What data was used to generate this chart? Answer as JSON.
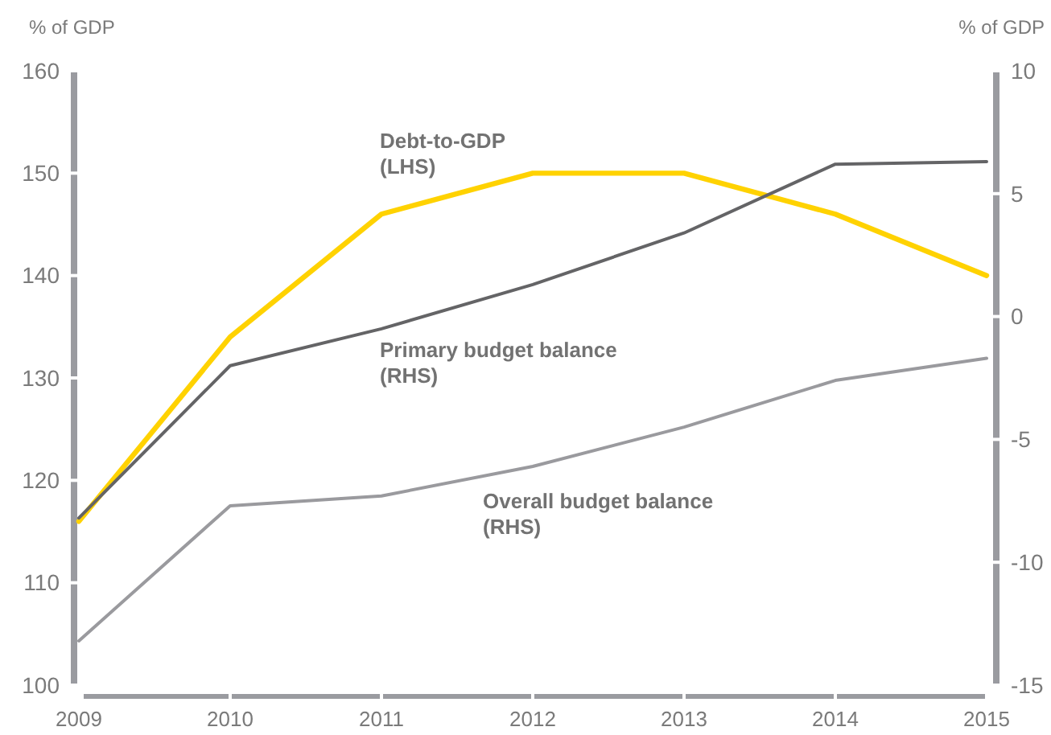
{
  "chart_data": {
    "type": "line",
    "ylabel": "% of GDP",
    "y2label": "% of GDP",
    "x": [
      2009,
      2010,
      2011,
      2012,
      2013,
      2014,
      2015
    ],
    "xlim": [
      2009,
      2015
    ],
    "xticks": [
      2009,
      2010,
      2011,
      2012,
      2013,
      2014,
      2015
    ],
    "ylim": [
      100,
      160
    ],
    "yticks": [
      100,
      110,
      120,
      130,
      140,
      150,
      160
    ],
    "y2lim": [
      -15,
      10
    ],
    "y2ticks": [
      -15,
      -10,
      -5,
      0,
      5,
      10
    ],
    "series": [
      {
        "name": "Debt-to-GDP (LHS)",
        "color": "#ffd200",
        "axis": "y",
        "values": [
          116,
          134,
          146,
          150,
          150,
          146,
          140
        ]
      },
      {
        "name": "Primary budget balance (RHS)",
        "color": "#646466",
        "axis": "y2",
        "values": [
          -8.2,
          -2.0,
          -0.5,
          1.3,
          3.4,
          6.2,
          6.3
        ]
      },
      {
        "name": "Overall budget balance (RHS)",
        "color": "#9a9a9e",
        "axis": "y2",
        "values": [
          -13.2,
          -7.7,
          -7.3,
          -6.1,
          -4.5,
          -2.6,
          -1.7
        ]
      }
    ]
  }
}
